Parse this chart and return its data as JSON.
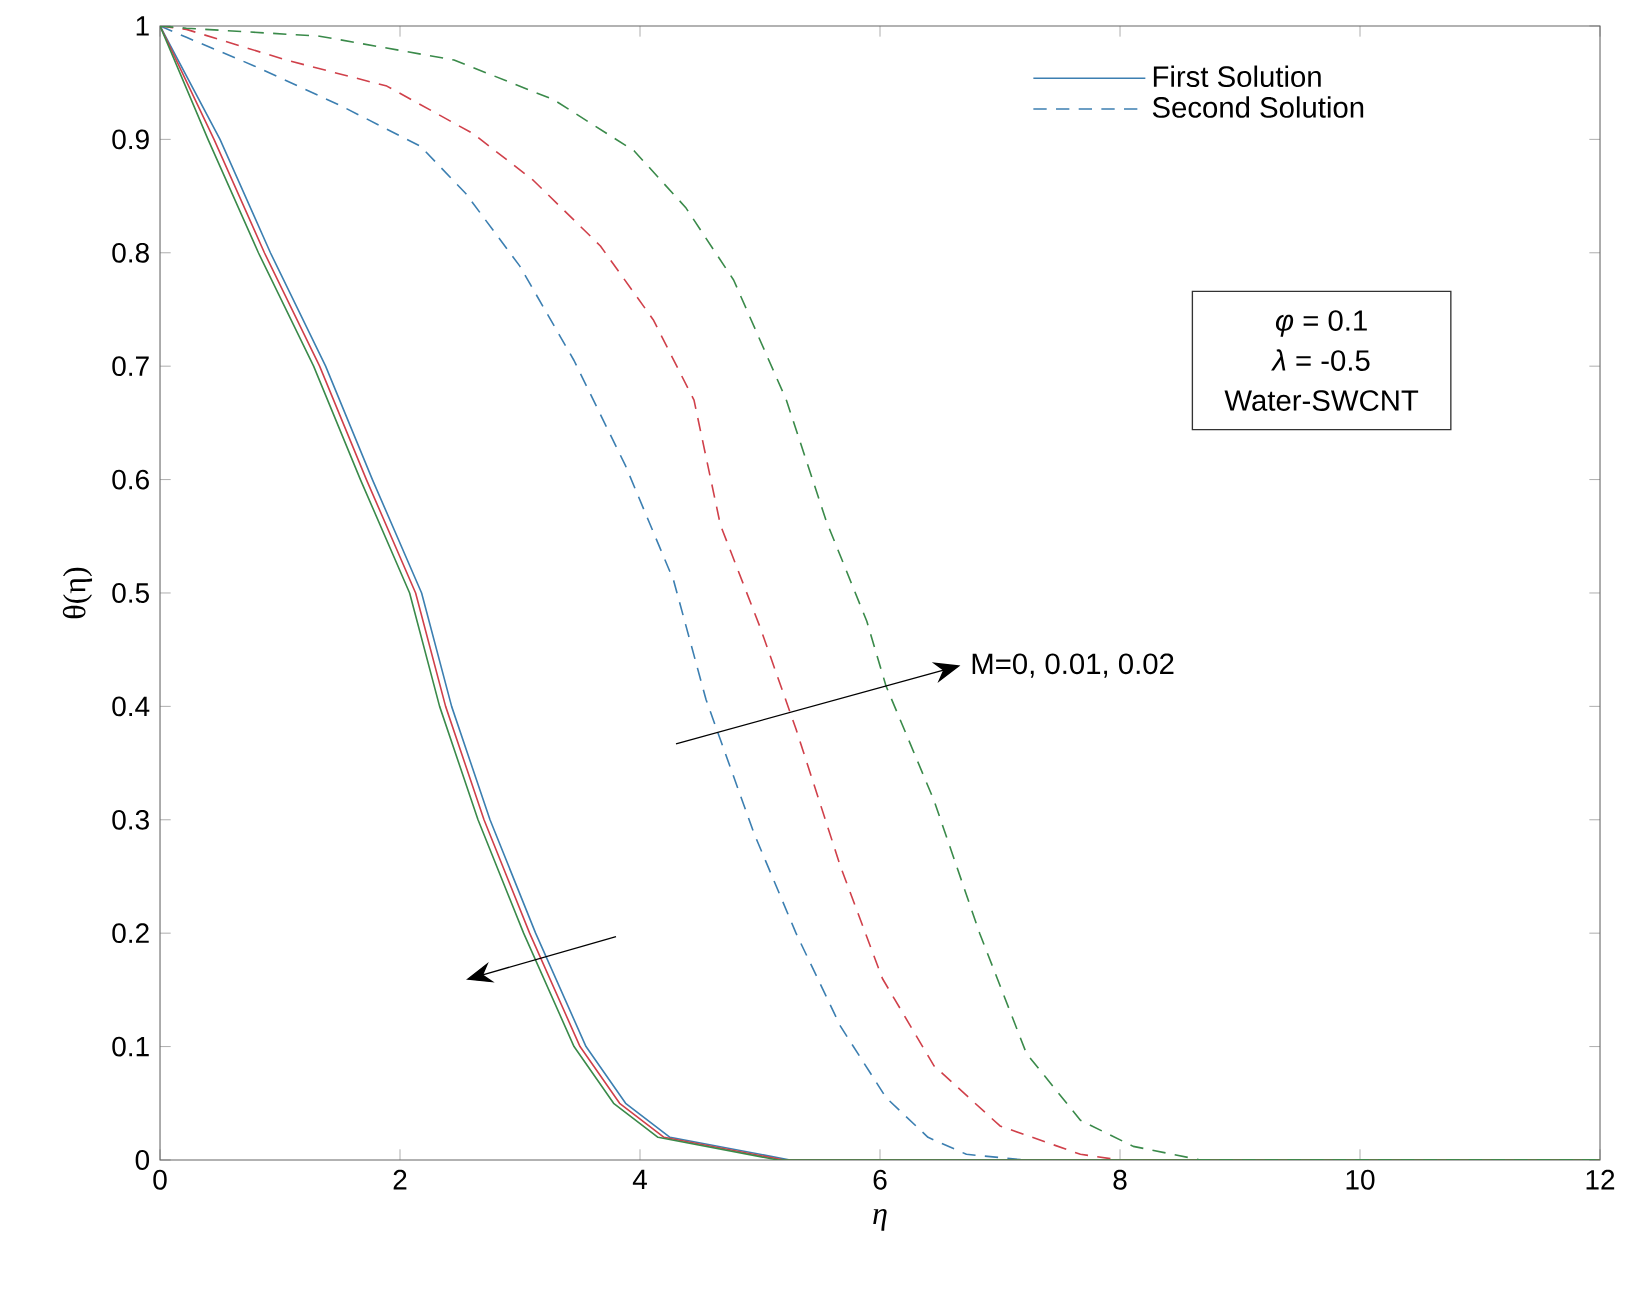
{
  "chart_data": {
    "type": "line",
    "xlabel": "η",
    "ylabel": "θ(η)",
    "xlim": [
      0,
      12
    ],
    "ylim": [
      0,
      1
    ],
    "xticks": [
      0,
      2,
      4,
      6,
      8,
      10,
      12
    ],
    "yticks": [
      0,
      0.1,
      0.2,
      0.3,
      0.4,
      0.5,
      0.6,
      0.7,
      0.8,
      0.9,
      1
    ],
    "grid": false,
    "legend": "top right",
    "marker": "none",
    "series": [
      {
        "name": "First Solution",
        "color": "#3c7fb1",
        "line_style": "solid",
        "x": [
          0,
          0.5,
          0.92,
          1.38,
          1.77,
          2.18,
          2.43,
          2.75,
          3.13,
          3.55,
          3.88,
          4.25,
          5.25,
          12
        ],
        "values": [
          1,
          0.9,
          0.8,
          0.7,
          0.6,
          0.5,
          0.4,
          0.3,
          0.2,
          0.1,
          0.05,
          0.02,
          0,
          0
        ]
      },
      {
        "name": "Second Solution",
        "color": "#3c7fb1",
        "line_style": "dashed",
        "x": [
          0,
          0.22,
          0.78,
          1.5,
          2.17,
          2.55,
          3.0,
          3.45,
          3.88,
          4.28,
          4.55,
          4.95,
          5.3,
          5.67,
          6.05,
          6.4,
          6.72,
          7.2,
          12
        ],
        "values": [
          1,
          0.99,
          0.965,
          0.93,
          0.894,
          0.852,
          0.788,
          0.705,
          0.612,
          0.511,
          0.406,
          0.288,
          0.2,
          0.118,
          0.055,
          0.02,
          0.005,
          0,
          0
        ]
      },
      {
        "color": "#d0404a",
        "line_style": "solid",
        "x": [
          0,
          0.45,
          0.87,
          1.33,
          1.72,
          2.13,
          2.38,
          2.7,
          3.08,
          3.5,
          3.83,
          4.2,
          5.2,
          12
        ],
        "values": [
          1,
          0.9,
          0.8,
          0.7,
          0.6,
          0.5,
          0.4,
          0.3,
          0.2,
          0.1,
          0.05,
          0.02,
          0,
          0
        ]
      },
      {
        "color": "#d0404a",
        "line_style": "dashed",
        "x": [
          0,
          0.22,
          1.05,
          1.89,
          2.61,
          3.11,
          3.67,
          4.11,
          4.45,
          4.67,
          5.0,
          5.3,
          5.67,
          6.02,
          6.45,
          7.0,
          7.67,
          8.0,
          12
        ],
        "values": [
          1,
          0.997,
          0.97,
          0.947,
          0.905,
          0.864,
          0.806,
          0.741,
          0.67,
          0.56,
          0.47,
          0.38,
          0.259,
          0.16,
          0.083,
          0.03,
          0.005,
          0,
          0
        ]
      },
      {
        "color": "#3a8a4a",
        "line_style": "solid",
        "x": [
          0,
          0.4,
          0.82,
          1.28,
          1.67,
          2.08,
          2.33,
          2.65,
          3.03,
          3.45,
          3.78,
          4.15,
          5.15,
          12
        ],
        "values": [
          1,
          0.9,
          0.8,
          0.7,
          0.6,
          0.5,
          0.4,
          0.3,
          0.2,
          0.1,
          0.05,
          0.02,
          0,
          0
        ]
      },
      {
        "color": "#3a8a4a",
        "line_style": "dashed",
        "x": [
          0,
          0.22,
          1.33,
          2.45,
          3.28,
          3.95,
          4.38,
          4.78,
          5.22,
          5.55,
          5.89,
          6.05,
          6.45,
          6.83,
          7.22,
          7.67,
          8.11,
          8.67,
          12
        ],
        "values": [
          1,
          0.998,
          0.991,
          0.97,
          0.935,
          0.89,
          0.84,
          0.776,
          0.67,
          0.564,
          0.475,
          0.418,
          0.317,
          0.2,
          0.094,
          0.035,
          0.012,
          0,
          0
        ]
      }
    ],
    "annotations": [
      "*φ* = 0.1",
      "*λ* = -0.5",
      "Water-SWCNT",
      "M=0, 0.01, 0.02"
    ]
  }
}
